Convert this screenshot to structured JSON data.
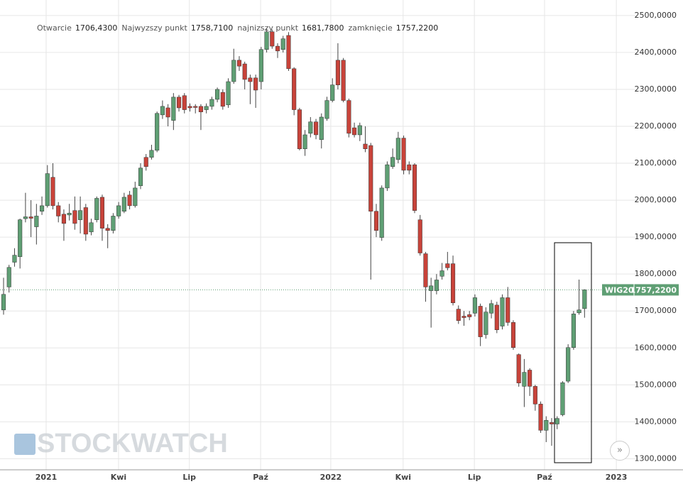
{
  "chart_data": {
    "type": "candlestick",
    "header": [
      {
        "label": "Otwarcie",
        "value": "1706,4300"
      },
      {
        "label": "Najwyzszy punkt",
        "value": "1758,7100"
      },
      {
        "label": "najnizszy punkt",
        "value": "1681,7800"
      },
      {
        "label": "zamknięcie",
        "value": "1757,2200"
      }
    ],
    "watermark": "STOCKWATCH",
    "up_color": "#5f9f74",
    "down_color": "#c8433a",
    "open": [
      1703,
      1765,
      1832,
      1847,
      1950,
      1955,
      1928,
      1970,
      1985,
      2062,
      1985,
      1962,
      1960,
      1972,
      1947,
      1980,
      1914,
      1947,
      2008,
      1924,
      1918,
      1957,
      1970,
      2014,
      1985,
      2039,
      2116,
      2116,
      2135,
      2231,
      2250,
      2216,
      2279,
      2283,
      2254,
      2254,
      2254,
      2245,
      2254,
      2273,
      2292,
      2258,
      2321,
      2379,
      2369,
      2331,
      2331,
      2321,
      2408,
      2456,
      2417,
      2408,
      2446,
      2356,
      2245,
      2139,
      2181,
      2212,
      2164,
      2221,
      2270,
      2379,
      2379,
      2270,
      2196,
      2177,
      2152,
      2148,
      1970,
      1899,
      2033,
      2091,
      2110,
      2168,
      2096,
      2096,
      1947,
      1855,
      1755,
      1755,
      1794,
      1828,
      1828,
      1705,
      1686,
      1690,
      1694,
      1713,
      1636,
      1694,
      1716,
      1659,
      1736,
      1669,
      1582,
      1496,
      1540,
      1496,
      1448,
      1377,
      1398,
      1394,
      1419,
      1510,
      1601,
      1695,
      1706.43
    ],
    "high": [
      1790,
      1825,
      1870,
      1950,
      2020,
      2000,
      1990,
      2010,
      2095,
      2100,
      1995,
      1975,
      1990,
      2010,
      2010,
      1990,
      1950,
      2010,
      2015,
      1935,
      1965,
      1995,
      2020,
      2025,
      2050,
      2100,
      2125,
      2150,
      2240,
      2270,
      2260,
      2290,
      2285,
      2290,
      2262,
      2260,
      2260,
      2262,
      2280,
      2305,
      2300,
      2330,
      2410,
      2390,
      2375,
      2340,
      2340,
      2415,
      2465,
      2462,
      2425,
      2445,
      2455,
      2360,
      2250,
      2190,
      2225,
      2220,
      2235,
      2280,
      2330,
      2425,
      2385,
      2275,
      2210,
      2210,
      2200,
      2155,
      1990,
      2040,
      2105,
      2140,
      2185,
      2175,
      2105,
      2100,
      1960,
      1860,
      1790,
      1800,
      1830,
      1860,
      1850,
      1715,
      1700,
      1700,
      1745,
      1720,
      1710,
      1730,
      1725,
      1745,
      1765,
      1675,
      1585,
      1570,
      1545,
      1500,
      1455,
      1415,
      1410,
      1415,
      1510,
      1610,
      1700,
      1785,
      1758.71
    ],
    "low": [
      1690,
      1750,
      1820,
      1815,
      1940,
      1900,
      1880,
      1960,
      1980,
      1975,
      1940,
      1890,
      1945,
      1920,
      1910,
      1890,
      1905,
      1940,
      1890,
      1870,
      1910,
      1950,
      1965,
      1975,
      1980,
      2030,
      2080,
      2110,
      2130,
      2220,
      2200,
      2190,
      2240,
      2235,
      2240,
      2235,
      2190,
      2235,
      2245,
      2265,
      2245,
      2250,
      2315,
      2350,
      2300,
      2260,
      2250,
      2300,
      2400,
      2410,
      2385,
      2400,
      2350,
      2230,
      2135,
      2120,
      2170,
      2165,
      2140,
      2215,
      2265,
      2300,
      2265,
      2170,
      2170,
      2160,
      2130,
      1785,
      1900,
      1890,
      2025,
      2085,
      2100,
      2070,
      2070,
      1965,
      1850,
      1725,
      1655,
      1745,
      1785,
      1810,
      1715,
      1665,
      1660,
      1675,
      1685,
      1605,
      1625,
      1680,
      1640,
      1650,
      1660,
      1595,
      1495,
      1440,
      1470,
      1430,
      1370,
      1345,
      1335,
      1380,
      1415,
      1505,
      1595,
      1690,
      1681.78
    ],
    "close": [
      1745,
      1818,
      1851,
      1947,
      1955,
      1951,
      1957,
      1985,
      2072,
      1985,
      1957,
      1937,
      1965,
      1937,
      1972,
      1908,
      1939,
      2005,
      1924,
      1918,
      1957,
      1985,
      2008,
      1985,
      2033,
      2087,
      2091,
      2135,
      2235,
      2254,
      2225,
      2279,
      2250,
      2245,
      2250,
      2251,
      2239,
      2254,
      2273,
      2300,
      2254,
      2321,
      2379,
      2363,
      2327,
      2321,
      2298,
      2408,
      2456,
      2417,
      2404,
      2437,
      2356,
      2245,
      2139,
      2177,
      2212,
      2177,
      2225,
      2270,
      2312,
      2312,
      2270,
      2181,
      2177,
      2202,
      2139,
      1970,
      1918,
      2033,
      2096,
      2116,
      2168,
      2081,
      2081,
      1972,
      1857,
      1765,
      1768,
      1784,
      1809,
      1817,
      1722,
      1674,
      1682,
      1684,
      1736,
      1630,
      1697,
      1720,
      1649,
      1736,
      1669,
      1601,
      1505,
      1534,
      1496,
      1448,
      1377,
      1404,
      1394,
      1409,
      1506,
      1601,
      1692,
      1703,
      1757.22
    ],
    "xlim": [
      -0.65,
      108.16
    ],
    "xticks": [
      {
        "value": 7.77,
        "label": "2021"
      },
      {
        "value": 20.98,
        "label": "Kwi"
      },
      {
        "value": 33.9,
        "label": "Lip"
      },
      {
        "value": 46.9,
        "label": "Paź"
      },
      {
        "value": 59.7,
        "label": "2022"
      },
      {
        "value": 72.9,
        "label": "Kwi"
      },
      {
        "value": 85.9,
        "label": "Lip"
      },
      {
        "value": 98.7,
        "label": "Paź"
      },
      {
        "value": 111.8,
        "label": "2023"
      }
    ],
    "ylim": [
      1270,
      2542
    ],
    "yticks": [
      {
        "value": 1300,
        "label": "1300,0000"
      },
      {
        "value": 1400,
        "label": "1400,0000"
      },
      {
        "value": 1500,
        "label": "1500,0000"
      },
      {
        "value": 1600,
        "label": "1600,0000"
      },
      {
        "value": 1700,
        "label": "1700,0000"
      },
      {
        "value": 1800,
        "label": "1800,0000"
      },
      {
        "value": 1900,
        "label": "1900,0000"
      },
      {
        "value": 2000,
        "label": "2000,0000"
      },
      {
        "value": 2100,
        "label": "2100,0000"
      },
      {
        "value": 2200,
        "label": "2200,0000"
      },
      {
        "value": 2300,
        "label": "2300,0000"
      },
      {
        "value": 2400,
        "label": "2400,0000"
      },
      {
        "value": 2500,
        "label": "2500,0000"
      }
    ],
    "grid": true,
    "last_price": {
      "name": "WIG20",
      "value": 1757.22,
      "label": "1757,2200",
      "color": "#5f9f74"
    }
  }
}
